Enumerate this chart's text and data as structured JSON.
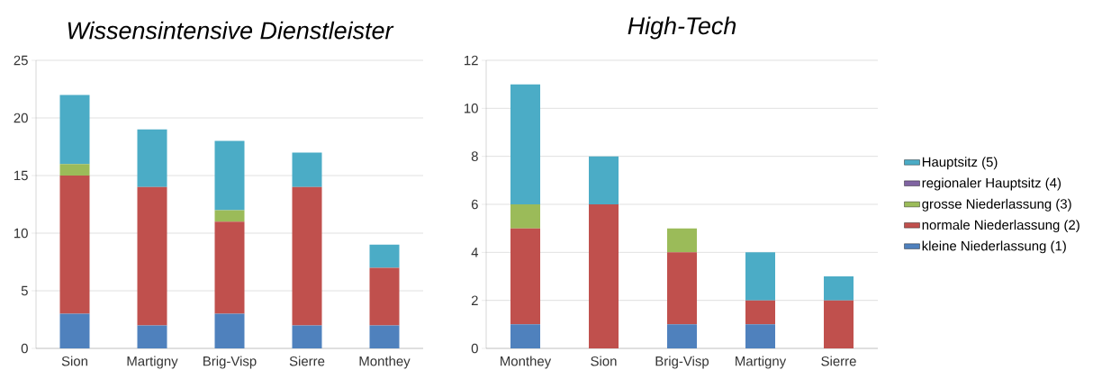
{
  "chart_data": [
    {
      "type": "bar",
      "title": "Wissensintensive Dienstleister",
      "stacked": true,
      "grid": "y",
      "categories": [
        "Sion",
        "Martigny",
        "Brig-Visp",
        "Sierre",
        "Monthey"
      ],
      "ylim": [
        0,
        25
      ],
      "yticks": [
        0,
        5,
        10,
        15,
        20,
        25
      ],
      "series": [
        {
          "color": "#4f81bd",
          "values": [
            3,
            2,
            3,
            2,
            2
          ]
        },
        {
          "color": "#c0504d",
          "values": [
            12,
            12,
            8,
            12,
            5
          ]
        },
        {
          "color": "#9bbb59",
          "values": [
            1,
            0,
            1,
            0,
            0
          ]
        },
        {
          "color": "#8064a2",
          "values": [
            0,
            0,
            0,
            0,
            0
          ]
        },
        {
          "color": "#4bacc6",
          "values": [
            6,
            5,
            6,
            3,
            2
          ]
        }
      ]
    },
    {
      "type": "bar",
      "title": "High-Tech",
      "stacked": true,
      "grid": "y",
      "legend": "right",
      "categories": [
        "Monthey",
        "Sion",
        "Brig-Visp",
        "Martigny",
        "Sierre"
      ],
      "ylim": [
        0,
        12
      ],
      "yticks": [
        0,
        2,
        4,
        6,
        8,
        10,
        12
      ],
      "series": [
        {
          "name": "kleine Niederlassung (1)",
          "color": "#4f81bd",
          "values": [
            1,
            0,
            1,
            1,
            0
          ]
        },
        {
          "name": "normale Niederlassung (2)",
          "color": "#c0504d",
          "values": [
            4,
            6,
            3,
            1,
            2
          ]
        },
        {
          "name": "grosse Niederlassung (3)",
          "color": "#9bbb59",
          "values": [
            1,
            0,
            1,
            0,
            0
          ]
        },
        {
          "name": "regionaler Hauptsitz (4)",
          "color": "#8064a2",
          "values": [
            0,
            0,
            0,
            0,
            0
          ]
        },
        {
          "name": "Hauptsitz (5)",
          "color": "#4bacc6",
          "values": [
            5,
            2,
            0,
            2,
            1
          ]
        }
      ]
    }
  ]
}
